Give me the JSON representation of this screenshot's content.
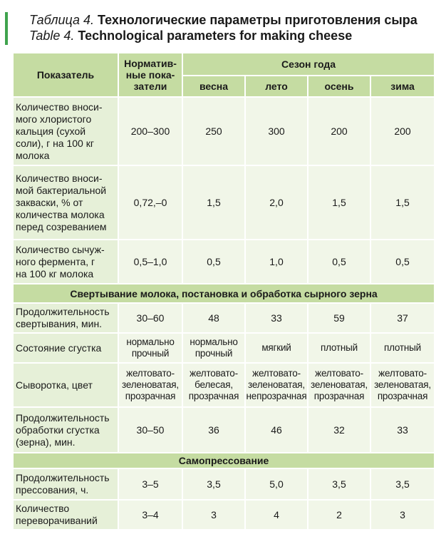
{
  "caption": {
    "ru_prefix": "Таблица 4.",
    "ru_title": "Технологические параметры приготовления сыра",
    "en_prefix": "Table 4.",
    "en_title": "Technological parameters for making cheese"
  },
  "header": {
    "indicator": "Показатель",
    "norm_line1": "Норматив-",
    "norm_line2": "ные пока-",
    "norm_line3": "затели",
    "season": "Сезон года",
    "seasons": [
      "весна",
      "лето",
      "осень",
      "зима"
    ]
  },
  "sections": {
    "coagulation": "Свертывание молока, постановка и обработка сырного зерна",
    "pressing": "Самопрессование"
  },
  "rows": [
    {
      "label_lines": [
        "Количество вноси-",
        "мого хлористого",
        "кальция (сухой",
        "соли), г на 100 кг",
        "молока"
      ],
      "norm": "200–300",
      "values": [
        "250",
        "300",
        "200",
        "200"
      ]
    },
    {
      "label_lines": [
        "Количество вноси-",
        "мой бактериальной",
        "закваски, % от",
        "количества молока",
        "перед созреванием"
      ],
      "norm": "0,72,–0",
      "values": [
        "1,5",
        "2,0",
        "1,5",
        "1,5"
      ]
    },
    {
      "label_lines": [
        "Количество сычуж-",
        "ного фермента, г",
        "на 100 кг молока"
      ],
      "norm": "0,5–1,0",
      "values": [
        "0,5",
        "1,0",
        "0,5",
        "0,5"
      ]
    },
    {
      "label_lines": [
        "Продолжительность",
        "свертывания, мин."
      ],
      "norm": "30–60",
      "values": [
        "48",
        "33",
        "59",
        "37"
      ]
    },
    {
      "label_lines": [
        "Состояние сгустка"
      ],
      "norm_lines": [
        "нормально",
        "прочный"
      ],
      "values_lines": [
        [
          "нормально",
          "прочный"
        ],
        [
          "мягкий"
        ],
        [
          "плотный"
        ],
        [
          "плотный"
        ]
      ]
    },
    {
      "label_lines": [
        "Сыворотка, цвет"
      ],
      "norm_lines": [
        "желтовато-",
        "зеленоватая,",
        "прозрачная"
      ],
      "values_lines": [
        [
          "желтовато-",
          "белесая,",
          "прозрачная"
        ],
        [
          "желтовато-",
          "зеленоватая,",
          "непрозрачная"
        ],
        [
          "желтовато-",
          "зеленоватая,",
          "прозрачная"
        ],
        [
          "желтовато-",
          "зеленоватая,",
          "прозрачная"
        ]
      ]
    },
    {
      "label_lines": [
        "Продолжительность",
        "обработки сгустка",
        "(зерна), мин."
      ],
      "norm": "30–50",
      "values": [
        "36",
        "46",
        "32",
        "33"
      ]
    },
    {
      "label_lines": [
        "Продолжительность",
        "прессования, ч."
      ],
      "norm": "3–5",
      "values": [
        "3,5",
        "5,0",
        "3,5",
        "3,5"
      ]
    },
    {
      "label_lines": [
        "Количество",
        "переворачиваний"
      ],
      "norm": "3–4",
      "values": [
        "3",
        "4",
        "2",
        "3"
      ]
    }
  ],
  "colors": {
    "accent_bar": "#3fa34d",
    "header_bg": "#c5dca2",
    "label_bg": "#e6f0d8",
    "cell_bg": "#f1f6e8"
  }
}
